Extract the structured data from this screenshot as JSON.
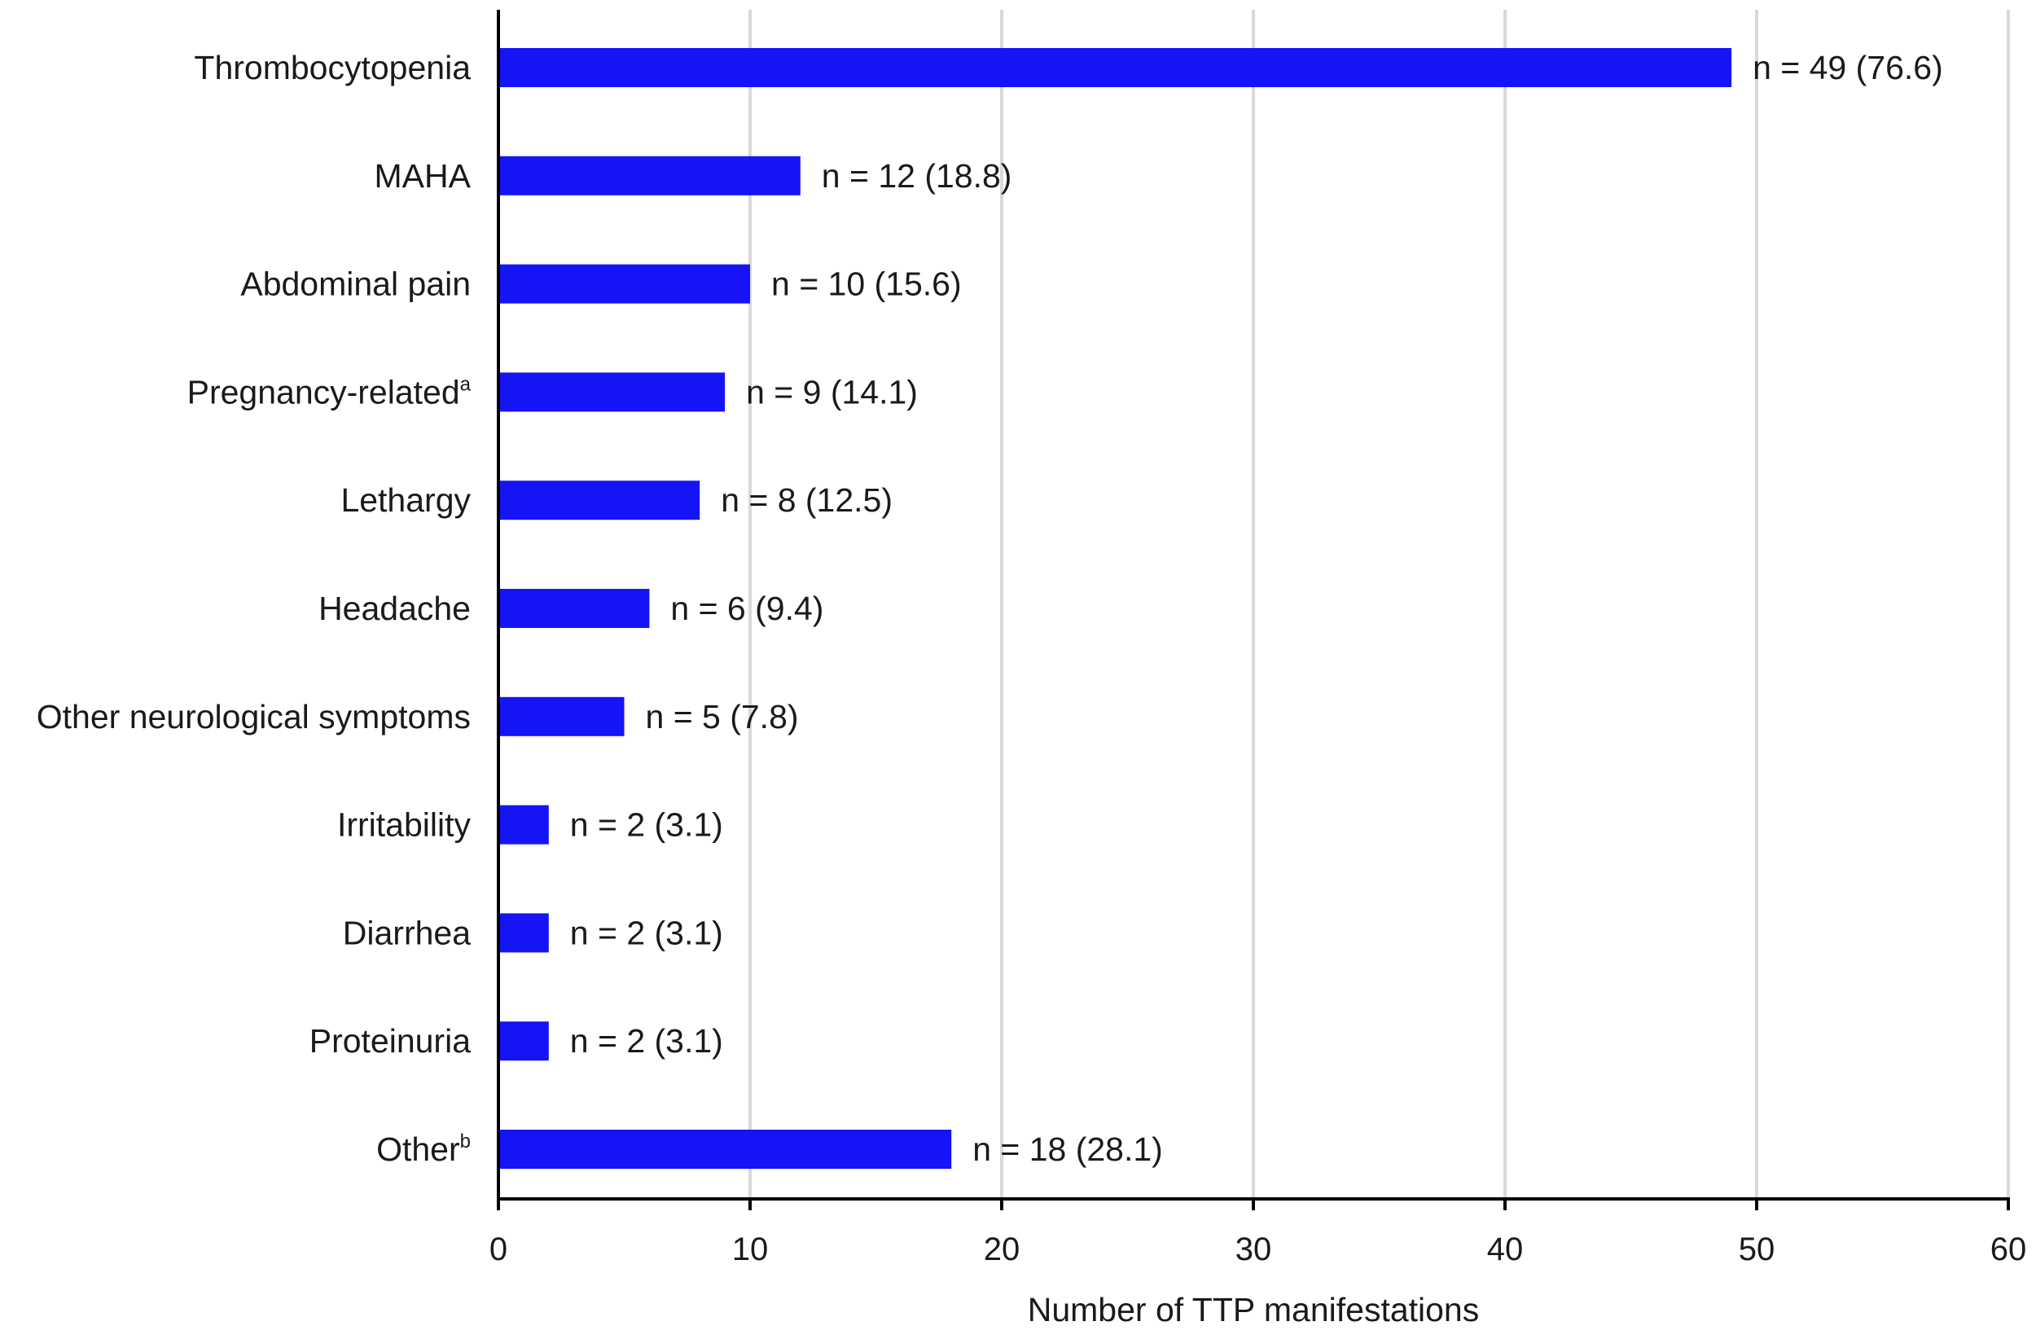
{
  "chart_data": {
    "type": "bar",
    "orientation": "horizontal",
    "categories": [
      "Thrombocytopenia",
      "MAHA",
      "Abdominal pain",
      "Pregnancy-related",
      "Lethargy",
      "Headache",
      "Other neurological symptoms",
      "Irritability",
      "Diarrhea",
      "Proteinuria",
      "Other"
    ],
    "category_superscripts": [
      "",
      "",
      "",
      "a",
      "",
      "",
      "",
      "",
      "",
      "",
      "b"
    ],
    "values": [
      49,
      12,
      10,
      9,
      8,
      6,
      5,
      2,
      2,
      2,
      18
    ],
    "data_labels": [
      "n = 49 (76.6)",
      "n = 12 (18.8)",
      "n = 10 (15.6)",
      "n = 9 (14.1)",
      "n = 8 (12.5)",
      "n = 6 (9.4)",
      "n = 5 (7.8)",
      "n = 2 (3.1)",
      "n = 2 (3.1)",
      "n = 2 (3.1)",
      "n = 18 (28.1)"
    ],
    "xlabel": "Number of TTP manifestations",
    "ylabel": "",
    "xlim": [
      0,
      60
    ],
    "xticks": [
      0,
      10,
      20,
      30,
      40,
      50,
      60
    ],
    "grid": "vertical",
    "legend": "none"
  },
  "colors": {
    "bar": "#1414f5",
    "grid": "#d9d9d9",
    "axis": "#000000",
    "text": "#1a1a1a"
  }
}
